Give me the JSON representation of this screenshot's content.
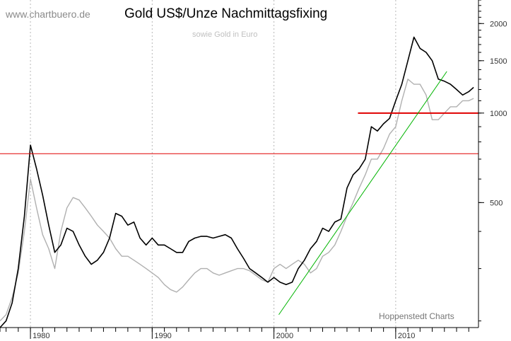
{
  "watermark": "www.chartbuero.de",
  "source_note": "Hoppenstedt Charts",
  "chart_data": {
    "type": "line",
    "title": "Gold US$/Unze Nachmittagsfixing",
    "subtitle": "sowie Gold in Euro",
    "xlabel": "",
    "ylabel": "",
    "y_scale": "log",
    "xlim": [
      1977.5,
      2016.8
    ],
    "ylim": [
      190,
      2400
    ],
    "y_ticks": [
      500,
      1000,
      1500,
      2000
    ],
    "x_ticks": [
      {
        "x": 1980,
        "label": "1980"
      },
      {
        "x": 1990,
        "label": "1990"
      },
      {
        "x": 2000,
        "label": "2000"
      },
      {
        "x": 2010,
        "label": "2010"
      }
    ],
    "x_minor_ticks": [
      1977.5,
      1978,
      1979,
      1980,
      1981,
      1982,
      1983,
      1984,
      1985,
      1986,
      1987,
      1988,
      1989,
      1990,
      1991,
      1992,
      1993,
      1994,
      1995,
      1996,
      1997,
      1998,
      1999,
      2000,
      2001,
      2002,
      2003,
      2004,
      2005,
      2006,
      2007,
      2008,
      2009,
      2010,
      2011,
      2012,
      2013,
      2014,
      2015,
      2016
    ],
    "grid": "vertical dotted at 1980, 1990, 2000, 2010",
    "series": [
      {
        "name": "",
        "color": "#000000",
        "x": [
          1977.5,
          1978.0,
          1978.5,
          1979.0,
          1979.5,
          1980.0,
          1980.5,
          1981.0,
          1981.5,
          1982.0,
          1982.5,
          1983.0,
          1983.5,
          1984.0,
          1984.5,
          1985.0,
          1985.5,
          1986.0,
          1986.5,
          1987.0,
          1987.5,
          1988.0,
          1988.5,
          1989.0,
          1989.5,
          1990.0,
          1990.5,
          1991.0,
          1991.5,
          1992.0,
          1992.5,
          1993.0,
          1993.5,
          1994.0,
          1994.5,
          1995.0,
          1995.5,
          1996.0,
          1996.5,
          1997.0,
          1997.5,
          1998.0,
          1998.5,
          1999.0,
          1999.5,
          2000.0,
          2000.5,
          2001.0,
          2001.5,
          2002.0,
          2002.5,
          2003.0,
          2003.5,
          2004.0,
          2004.5,
          2005.0,
          2005.5,
          2006.0,
          2006.5,
          2007.0,
          2007.5,
          2008.0,
          2008.5,
          2009.0,
          2009.5,
          2010.0,
          2010.5,
          2011.0,
          2011.5,
          2012.0,
          2012.5,
          2013.0,
          2013.5,
          2014.0,
          2014.5,
          2015.0,
          2015.5,
          2016.0,
          2016.4
        ],
        "values": [
          190,
          200,
          230,
          300,
          450,
          780,
          650,
          530,
          420,
          340,
          360,
          410,
          400,
          360,
          330,
          310,
          320,
          340,
          380,
          460,
          450,
          420,
          430,
          380,
          360,
          380,
          360,
          360,
          350,
          340,
          340,
          370,
          380,
          385,
          385,
          380,
          385,
          390,
          380,
          350,
          325,
          300,
          290,
          280,
          270,
          280,
          270,
          265,
          270,
          300,
          320,
          350,
          370,
          410,
          400,
          430,
          440,
          560,
          620,
          650,
          700,
          900,
          870,
          920,
          960,
          1100,
          1250,
          1500,
          1800,
          1650,
          1600,
          1500,
          1300,
          1280,
          1250,
          1200,
          1150,
          1180,
          1220
        ]
      },
      {
        "name": "",
        "color": "#b0b0b0",
        "x": [
          1977.5,
          1978.0,
          1978.5,
          1979.0,
          1979.5,
          1980.0,
          1980.5,
          1981.0,
          1981.5,
          1982.0,
          1982.5,
          1983.0,
          1983.5,
          1984.0,
          1984.5,
          1985.0,
          1985.5,
          1986.0,
          1986.5,
          1987.0,
          1987.5,
          1988.0,
          1988.5,
          1989.0,
          1989.5,
          1990.0,
          1990.5,
          1991.0,
          1991.5,
          1992.0,
          1992.5,
          1993.0,
          1993.5,
          1994.0,
          1994.5,
          1995.0,
          1995.5,
          1996.0,
          1996.5,
          1997.0,
          1997.5,
          1998.0,
          1998.5,
          1999.0,
          1999.5,
          2000.0,
          2000.5,
          2001.0,
          2001.5,
          2002.0,
          2002.5,
          2003.0,
          2003.5,
          2004.0,
          2004.5,
          2005.0,
          2005.5,
          2006.0,
          2006.5,
          2007.0,
          2007.5,
          2008.0,
          2008.5,
          2009.0,
          2009.5,
          2010.0,
          2010.5,
          2011.0,
          2011.5,
          2012.0,
          2012.5,
          2013.0,
          2013.5,
          2014.0,
          2014.5,
          2015.0,
          2015.5,
          2016.0,
          2016.4
        ],
        "values": [
          200,
          210,
          240,
          290,
          400,
          600,
          480,
          390,
          350,
          300,
          400,
          480,
          520,
          510,
          480,
          450,
          420,
          400,
          380,
          350,
          330,
          330,
          320,
          310,
          300,
          290,
          280,
          265,
          255,
          250,
          260,
          275,
          290,
          300,
          300,
          290,
          285,
          290,
          295,
          300,
          300,
          295,
          285,
          275,
          270,
          300,
          310,
          300,
          310,
          320,
          310,
          290,
          300,
          330,
          340,
          360,
          400,
          450,
          500,
          560,
          620,
          700,
          700,
          760,
          850,
          900,
          1100,
          1300,
          1250,
          1250,
          1150,
          950,
          950,
          1000,
          1050,
          1050,
          1100,
          1100,
          1120
        ]
      }
    ],
    "reference_lines": [
      {
        "type": "horizontal",
        "y": 1000,
        "color": "#e00000",
        "xfrom": 2006.9
      },
      {
        "type": "horizontal",
        "y": 730,
        "color": "#e00000"
      },
      {
        "type": "trend",
        "color": "#00b400",
        "x": [
          2000.4,
          2014.2
        ],
        "y": [
          210,
          1380
        ]
      }
    ]
  }
}
